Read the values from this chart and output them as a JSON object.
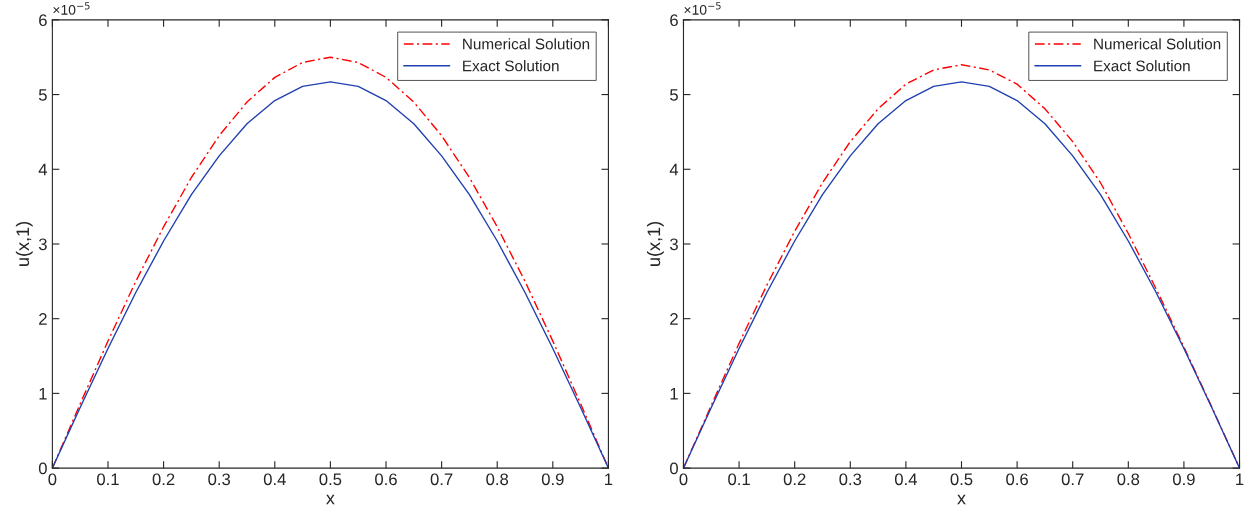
{
  "chart_data": [
    {
      "type": "line",
      "xlabel": "x",
      "ylabel": "u(x,1)",
      "annotations": [
        "×10$^{−5}$"
      ],
      "x": [
        0,
        0.05,
        0.1,
        0.15,
        0.2,
        0.25,
        0.3,
        0.35,
        0.4,
        0.45,
        0.5,
        0.55,
        0.6,
        0.65,
        0.7,
        0.75,
        0.8,
        0.85,
        0.9,
        0.95,
        1
      ],
      "series": [
        {
          "name": "Numerical Solution",
          "color": "#ff0000",
          "line_style": "dashed",
          "values": [
            0,
            0.86,
            1.7,
            2.5,
            3.23,
            3.89,
            4.45,
            4.9,
            5.23,
            5.43,
            5.5,
            5.43,
            5.23,
            4.9,
            4.45,
            3.89,
            3.23,
            2.5,
            1.7,
            0.86,
            0
          ]
        },
        {
          "name": "Exact Solution",
          "color": "#2040b0",
          "line_style": "solid",
          "values": [
            0,
            0.81,
            1.6,
            2.35,
            3.04,
            3.66,
            4.18,
            4.61,
            4.92,
            5.11,
            5.17,
            5.11,
            4.92,
            4.61,
            4.18,
            3.66,
            3.04,
            2.35,
            1.6,
            0.81,
            0
          ]
        }
      ],
      "xlim": [
        0,
        1
      ],
      "xticks": [
        0,
        0.1,
        0.2,
        0.3,
        0.4,
        0.5,
        0.6,
        0.7,
        0.8,
        0.9,
        1
      ],
      "ylim": [
        0,
        6
      ],
      "yticks": [
        0,
        1,
        2,
        3,
        4,
        5,
        6
      ],
      "legend": "top right"
    },
    {
      "type": "line",
      "xlabel": "x",
      "ylabel": "u(x,1)",
      "annotations": [
        "×10$^{−5}$"
      ],
      "x": [
        0,
        0.05,
        0.1,
        0.15,
        0.2,
        0.25,
        0.3,
        0.35,
        0.4,
        0.45,
        0.5,
        0.55,
        0.6,
        0.65,
        0.7,
        0.75,
        0.8,
        0.85,
        0.9,
        0.95,
        1
      ],
      "series": [
        {
          "name": "Numerical Solution",
          "color": "#ff0000",
          "line_style": "dashed",
          "values": [
            0,
            0.84,
            1.67,
            2.45,
            3.17,
            3.82,
            4.37,
            4.81,
            5.14,
            5.33,
            5.4,
            5.33,
            5.14,
            4.81,
            4.37,
            3.82,
            3.14,
            2.4,
            1.62,
            0.82,
            0
          ]
        },
        {
          "name": "Exact Solution",
          "color": "#2040b0",
          "line_style": "solid",
          "values": [
            0,
            0.81,
            1.6,
            2.35,
            3.04,
            3.66,
            4.18,
            4.61,
            4.92,
            5.11,
            5.17,
            5.11,
            4.92,
            4.61,
            4.18,
            3.66,
            3.04,
            2.35,
            1.6,
            0.81,
            0
          ]
        }
      ],
      "xlim": [
        0,
        1
      ],
      "xticks": [
        0,
        0.1,
        0.2,
        0.3,
        0.4,
        0.5,
        0.6,
        0.7,
        0.8,
        0.9,
        1
      ],
      "ylim": [
        0,
        6
      ],
      "yticks": [
        0,
        1,
        2,
        3,
        4,
        5,
        6
      ],
      "legend": "top right"
    }
  ]
}
